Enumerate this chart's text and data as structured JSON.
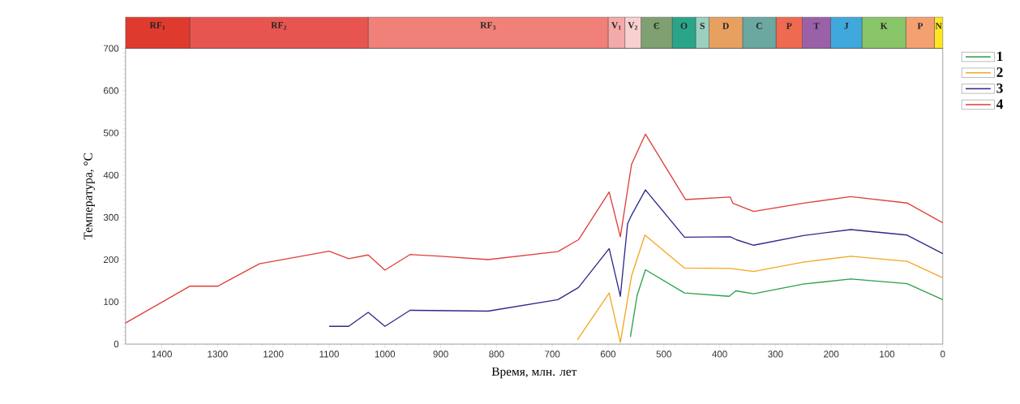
{
  "chart_data": [
    {
      "type": "bar",
      "orientation": "horizontal",
      "stacked": true,
      "categories": [
        null
      ],
      "xlim": [
        1465,
        0
      ],
      "tick_labels": false,
      "series": [
        {
          "name": "N",
          "color": "#ffe620",
          "values": [
            15
          ]
        },
        {
          "name": "Р",
          "color": "#f4a070",
          "values": [
            51
          ]
        },
        {
          "name": "K",
          "color": "#88c468",
          "values": [
            79
          ]
        },
        {
          "name": "J",
          "color": "#40a8dc",
          "values": [
            56
          ]
        },
        {
          "name": "T",
          "color": "#9a60a8",
          "values": [
            51
          ]
        },
        {
          "name": "P",
          "color": "#ee6a50",
          "values": [
            47
          ]
        },
        {
          "name": "C",
          "color": "#6aa8a0",
          "values": [
            60
          ]
        },
        {
          "name": "D",
          "color": "#e8a060",
          "values": [
            60
          ]
        },
        {
          "name": "S",
          "color": "#9ad0c0",
          "values": [
            24
          ]
        },
        {
          "name": "O",
          "color": "#2aa58a",
          "values": [
            42
          ]
        },
        {
          "name": "Є",
          "color": "#7fa070",
          "values": [
            56
          ]
        },
        {
          "name": "V$_{2}$",
          "color": "#f8d0d0",
          "values": [
            29
          ]
        },
        {
          "name": "V$_{1}$",
          "color": "#f4aaa8",
          "values": [
            30
          ]
        },
        {
          "name": "RF$_{3}$",
          "color": "#f08078",
          "values": [
            430
          ]
        },
        {
          "name": "RF$_{2}$",
          "color": "#e85550",
          "values": [
            320
          ]
        },
        {
          "name": "RF$_{1}$",
          "color": "#e03a2e",
          "values": [
            115
          ]
        }
      ]
    },
    {
      "type": "line",
      "xlabel": "Время, млн. лет",
      "ylabel": "Температура, °C",
      "xlim": [
        1465,
        0
      ],
      "ylim": [
        0,
        700
      ],
      "xticks": [
        1400,
        1300,
        1200,
        1100,
        1000,
        900,
        800,
        700,
        600,
        500,
        400,
        300,
        200,
        100,
        0
      ],
      "yticks": [
        0,
        100,
        200,
        300,
        400,
        500,
        600,
        700
      ],
      "legend": "right",
      "series": [
        {
          "name": "1",
          "color": "#2ca048",
          "x": [
            560,
            548,
            533,
            463,
            383,
            371,
            339,
            250,
            165,
            64,
            0
          ],
          "values": [
            17,
            115,
            176,
            121,
            113,
            126,
            119,
            142,
            154,
            143,
            105
          ]
        },
        {
          "name": "2",
          "color": "#f5a623",
          "x": [
            655,
            598,
            578,
            558,
            534,
            463,
            381,
            339,
            250,
            165,
            64,
            0
          ],
          "values": [
            10,
            121,
            4,
            161,
            258,
            180,
            179,
            172,
            194,
            208,
            196,
            157
          ]
        },
        {
          "name": "3",
          "color": "#2e2a8c",
          "x": [
            1100,
            1065,
            1030,
            1000,
            955,
            815,
            690,
            653,
            598,
            578,
            565,
            558,
            533,
            463,
            381,
            370,
            339,
            250,
            165,
            64,
            0
          ],
          "values": [
            42,
            42,
            75,
            42,
            80,
            78,
            105,
            134,
            226,
            113,
            285,
            305,
            365,
            253,
            254,
            247,
            234,
            257,
            271,
            258,
            214
          ]
        },
        {
          "name": "4",
          "color": "#e0403a",
          "x": [
            1465,
            1350,
            1300,
            1225,
            1100,
            1065,
            1030,
            1000,
            955,
            900,
            815,
            690,
            653,
            598,
            578,
            558,
            533,
            461,
            381,
            376,
            339,
            247,
            165,
            64,
            0
          ],
          "values": [
            50,
            137,
            137,
            190,
            220,
            202,
            211,
            175,
            212,
            208,
            200,
            219,
            247,
            360,
            254,
            425,
            497,
            342,
            348,
            333,
            314,
            334,
            349,
            334,
            287
          ]
        }
      ]
    }
  ]
}
